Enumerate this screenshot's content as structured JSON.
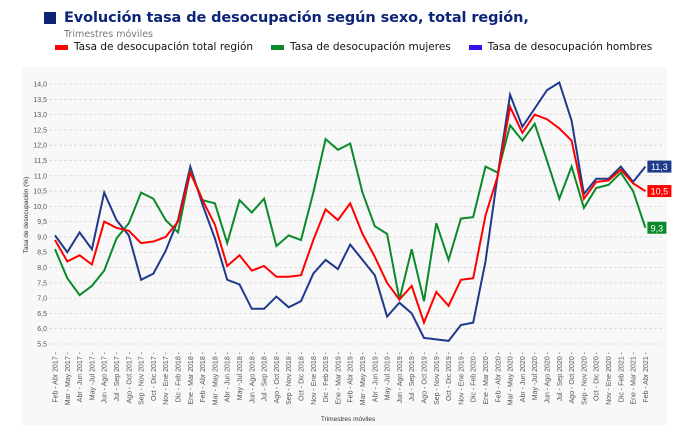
{
  "header": {
    "title": "Evolución tasa de desocupación según sexo, total región,",
    "subtitle": "Trimestres móviles"
  },
  "legend": [
    {
      "label": "Tasa de desocupación total región",
      "color": "#ff0000"
    },
    {
      "label": "Tasa de desocupación mujeres",
      "color": "#0a8a2a"
    },
    {
      "label": "Tasa de desocupación hombres",
      "color": "#3311ee"
    }
  ],
  "chart_data": {
    "type": "line",
    "title": "Evolución tasa de desocupación según sexo, total región,",
    "subtitle": "Trimestres móviles",
    "xlabel": "Trimestres móviles",
    "ylabel": "Tasa de desocupación (%)",
    "ylim": [
      5.5,
      14.0
    ],
    "ytick_step": 0.5,
    "yticks": [
      "5,5",
      "6,0",
      "6,5",
      "7,0",
      "7,5",
      "8,0",
      "8,5",
      "9,0",
      "9,5",
      "10,0",
      "10,5",
      "11,0",
      "11,5",
      "12,0",
      "12,5",
      "13,0",
      "13,5",
      "14,0"
    ],
    "grid": true,
    "legend_position": "top-left",
    "categories": [
      "Feb - Abr 2017",
      "Mar - May 2017",
      "Abr - Jun 2017",
      "May -Jul 2017",
      "Jun - Ago 2017",
      "Jul - Sep 2017",
      "Ago - Oct 2017",
      "Sep - Nov 2017",
      "Oct - Dic 2017",
      "Nov - Ene 2017",
      "Dic - Feb 2018",
      "Ene - Mar 2018",
      "Feb - Abr 2018",
      "Mar - May 2018",
      "Abr - Jun 2018",
      "May -Jul 2018",
      "Jun - Ago 2018",
      "Jul - Sep 2018",
      "Ago - Oct 2018",
      "Sep - Nov 2018",
      "Oct - Dic 2018",
      "Nov - Ene 2018",
      "Dic - Feb 2019",
      "Ene - Mar 2019",
      "Feb - Abr 2019",
      "Mar - May 2019",
      "Abr - Jun 2019",
      "May -Jul 2019",
      "Jun - Ago 2019",
      "Jul - Sep 2019",
      "Ago - Oct 2019",
      "Sep - Nov 2019",
      "Oct - Dic 2019",
      "Nov - Ene 2019",
      "Dic - Feb 2020",
      "Ene - Mar 2020",
      "Feb - Abr 2020",
      "Mar - May 2020",
      "Abr - Jun 2020",
      "May -Jul 2020",
      "Jun - Ago 2020",
      "Jul - Sep 2020",
      "Ago - Oct 2020",
      "Sep - Nov 2020",
      "Oct - Dic 2020",
      "Nov - Ene 2020",
      "Dic - Feb 2021",
      "Ene - Mar 2021",
      "Feb - Abr 2021"
    ],
    "series": [
      {
        "name": "Tasa de desocupación total región",
        "color": "#ff0000",
        "end_label": "10,5",
        "values": [
          8.9,
          8.2,
          8.4,
          8.1,
          9.5,
          9.3,
          9.2,
          8.8,
          8.85,
          9.0,
          9.5,
          11.1,
          10.2,
          9.4,
          8.05,
          8.4,
          7.9,
          8.05,
          7.7,
          7.7,
          7.75,
          8.9,
          9.9,
          9.55,
          10.1,
          9.1,
          8.35,
          7.5,
          6.95,
          7.4,
          6.2,
          7.2,
          6.75,
          7.6,
          7.65,
          9.7,
          11.0,
          13.25,
          12.4,
          13.0,
          12.85,
          12.55,
          12.15,
          10.25,
          10.8,
          10.85,
          11.2,
          10.75,
          10.5
        ]
      },
      {
        "name": "Tasa de desocupación mujeres",
        "color": "#0a8a2a",
        "end_label": "9,3",
        "values": [
          8.6,
          7.65,
          7.1,
          7.4,
          7.9,
          8.95,
          9.45,
          10.45,
          10.25,
          9.55,
          9.15,
          11.15,
          10.2,
          10.1,
          8.8,
          10.2,
          9.8,
          10.25,
          8.7,
          9.05,
          8.9,
          10.45,
          12.2,
          11.85,
          12.05,
          10.45,
          9.35,
          9.1,
          6.95,
          8.6,
          6.9,
          9.45,
          8.25,
          9.6,
          9.65,
          11.3,
          11.1,
          12.65,
          12.15,
          12.7,
          11.5,
          10.25,
          11.3,
          9.95,
          10.6,
          10.7,
          11.1,
          10.5,
          9.3
        ]
      },
      {
        "name": "Tasa de desocupación hombres",
        "color": "#1f3a8a",
        "end_label": "11,3",
        "values": [
          9.05,
          8.5,
          9.15,
          8.6,
          10.45,
          9.55,
          9.05,
          7.6,
          7.8,
          8.55,
          9.55,
          11.3,
          10.05,
          8.95,
          7.6,
          7.45,
          6.65,
          6.65,
          7.05,
          6.7,
          6.9,
          7.8,
          8.25,
          7.95,
          8.75,
          8.25,
          7.75,
          6.4,
          6.85,
          6.5,
          5.7,
          5.65,
          5.6,
          6.12,
          6.2,
          8.2,
          11.05,
          13.65,
          12.6,
          13.2,
          13.8,
          14.05,
          12.8,
          10.4,
          10.9,
          10.9,
          11.3,
          10.8,
          11.3
        ]
      }
    ]
  }
}
